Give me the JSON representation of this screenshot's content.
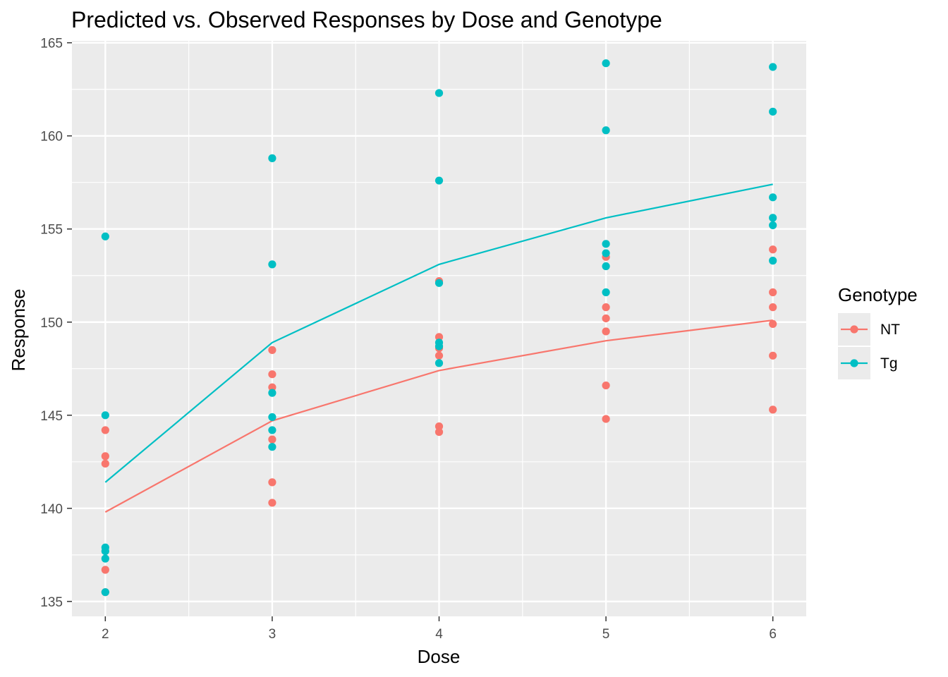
{
  "chart_data": {
    "type": "scatter",
    "title": "Predicted vs. Observed Responses by Dose and Genotype",
    "xlabel": "Dose",
    "ylabel": "Response",
    "xlim": [
      1.8,
      6.2
    ],
    "ylim": [
      134.2,
      165.1
    ],
    "x_ticks": [
      2,
      3,
      4,
      5,
      6
    ],
    "y_ticks": [
      135,
      140,
      145,
      150,
      155,
      160,
      165
    ],
    "grid": true,
    "legend": {
      "title": "Genotype",
      "position": "right"
    },
    "series": [
      {
        "name": "NT",
        "color": "#F8766D",
        "points": [
          [
            2,
            144.2
          ],
          [
            2,
            142.8
          ],
          [
            2,
            142.4
          ],
          [
            2,
            136.7
          ],
          [
            2,
            135.5
          ],
          [
            3,
            148.5
          ],
          [
            3,
            147.2
          ],
          [
            3,
            146.5
          ],
          [
            3,
            143.7
          ],
          [
            3,
            141.4
          ],
          [
            3,
            140.3
          ],
          [
            4,
            152.2
          ],
          [
            4,
            149.2
          ],
          [
            4,
            148.6
          ],
          [
            4,
            148.2
          ],
          [
            4,
            144.4
          ],
          [
            4,
            144.1
          ],
          [
            5,
            153.5
          ],
          [
            5,
            150.8
          ],
          [
            5,
            150.2
          ],
          [
            5,
            149.5
          ],
          [
            5,
            146.6
          ],
          [
            5,
            144.8
          ],
          [
            6,
            153.9
          ],
          [
            6,
            151.6
          ],
          [
            6,
            150.8
          ],
          [
            6,
            149.9
          ],
          [
            6,
            148.2
          ],
          [
            6,
            145.3
          ]
        ],
        "fitted": [
          [
            2,
            139.8
          ],
          [
            3,
            144.7
          ],
          [
            4,
            147.4
          ],
          [
            5,
            149.0
          ],
          [
            6,
            150.1
          ]
        ]
      },
      {
        "name": "Tg",
        "color": "#00BFC4",
        "points": [
          [
            2,
            154.6
          ],
          [
            2,
            145.0
          ],
          [
            2,
            137.9
          ],
          [
            2,
            137.7
          ],
          [
            2,
            137.3
          ],
          [
            2,
            135.5
          ],
          [
            3,
            158.8
          ],
          [
            3,
            153.1
          ],
          [
            3,
            146.2
          ],
          [
            3,
            144.9
          ],
          [
            3,
            144.2
          ],
          [
            3,
            143.3
          ],
          [
            4,
            162.3
          ],
          [
            4,
            157.6
          ],
          [
            4,
            152.1
          ],
          [
            4,
            148.9
          ],
          [
            4,
            148.7
          ],
          [
            4,
            147.8
          ],
          [
            5,
            163.9
          ],
          [
            5,
            160.3
          ],
          [
            5,
            154.2
          ],
          [
            5,
            153.7
          ],
          [
            5,
            153.0
          ],
          [
            5,
            151.6
          ],
          [
            6,
            163.7
          ],
          [
            6,
            161.3
          ],
          [
            6,
            156.7
          ],
          [
            6,
            155.6
          ],
          [
            6,
            155.2
          ],
          [
            6,
            153.3
          ]
        ],
        "fitted": [
          [
            2,
            141.4
          ],
          [
            3,
            148.9
          ],
          [
            4,
            153.1
          ],
          [
            5,
            155.6
          ],
          [
            6,
            157.4
          ]
        ]
      }
    ]
  }
}
